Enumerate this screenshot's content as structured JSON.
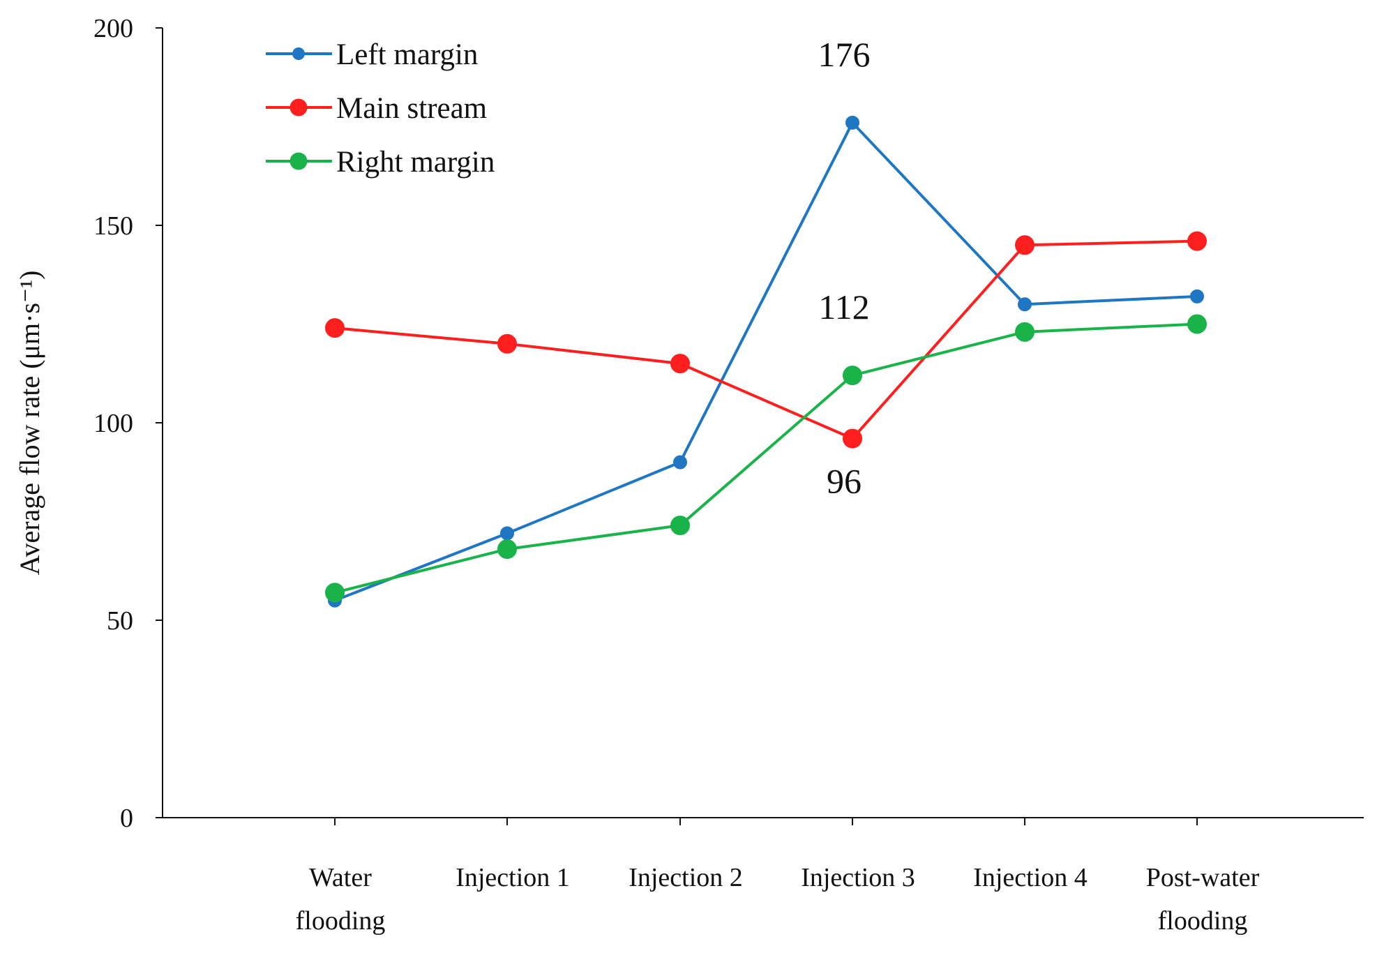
{
  "chart_data": {
    "type": "line",
    "title": "",
    "xlabel": "",
    "ylabel": "Average flow rate (μm·s⁻¹)",
    "ylim": [
      0,
      200
    ],
    "yticks": [
      0,
      50,
      100,
      150,
      200
    ],
    "categories": [
      [
        "Water",
        "flooding"
      ],
      [
        "Injection 1"
      ],
      [
        "Injection 2"
      ],
      [
        "Injection 3"
      ],
      [
        "Injection 4"
      ],
      [
        "Post-water",
        "flooding"
      ]
    ],
    "legend_position": "top-left",
    "series": [
      {
        "name": "Left margin",
        "color": "#1f77c4",
        "values": [
          55,
          72,
          90,
          176,
          130,
          132
        ],
        "marker": "small-circle"
      },
      {
        "name": "Main stream",
        "color": "#ff1f1f",
        "values": [
          124,
          120,
          115,
          96,
          145,
          146
        ],
        "marker": "large-circle"
      },
      {
        "name": "Right margin",
        "color": "#19b34a",
        "values": [
          57,
          68,
          74,
          112,
          123,
          125
        ],
        "marker": "large-circle"
      }
    ],
    "annotations": [
      {
        "text": "176",
        "category_index": 3,
        "anchor_value": 176,
        "placement": "above"
      },
      {
        "text": "112",
        "category_index": 3,
        "anchor_value": 112,
        "placement": "above"
      },
      {
        "text": "96",
        "category_index": 3,
        "anchor_value": 96,
        "placement": "below"
      }
    ]
  }
}
